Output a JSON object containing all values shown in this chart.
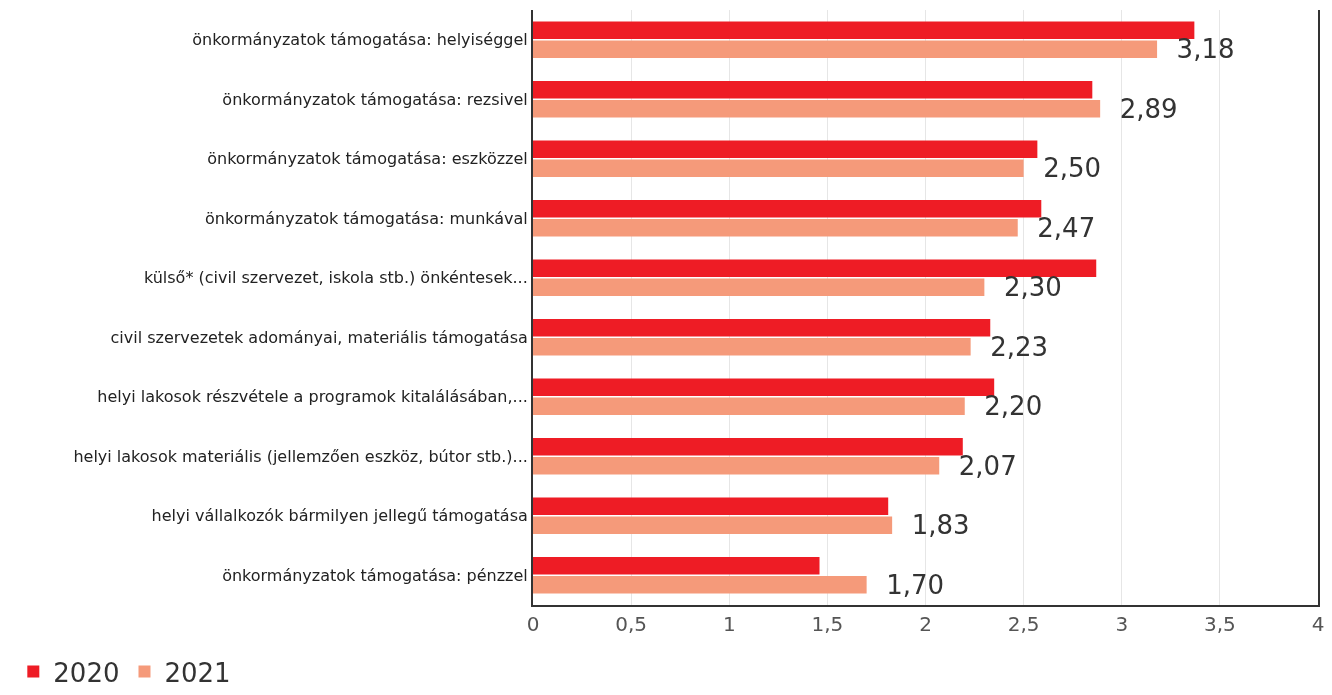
{
  "chart_data": {
    "type": "bar",
    "orientation": "horizontal",
    "categories": [
      "önkormányzatok támogatása: helyiséggel",
      "önkormányzatok támogatása: rezsivel",
      "önkormányzatok támogatása: eszközzel",
      "önkormányzatok támogatása: munkával",
      "külső* (civil szervezet, iskola stb.) önkéntesek...",
      "civil szervezetek adományai, materiális támogatása",
      "helyi lakosok részvétele a programok kitalálásában,...",
      "helyi lakosok materiális (jellemzően eszköz, bútor stb.)...",
      "helyi vállalkozók bármilyen jellegű támogatása",
      "önkormányzatok támogatása: pénzzel"
    ],
    "series": [
      {
        "name": "2020",
        "color": "#ee1c25",
        "values": [
          3.37,
          2.85,
          2.57,
          2.59,
          2.87,
          2.33,
          2.35,
          2.19,
          1.81,
          1.46
        ]
      },
      {
        "name": "2021",
        "color": "#f59a7a",
        "values": [
          3.18,
          2.89,
          2.5,
          2.47,
          2.3,
          2.23,
          2.2,
          2.07,
          1.83,
          1.7
        ],
        "value_labels": [
          "3,18",
          "2,89",
          "2,50",
          "2,47",
          "2,30",
          "2,23",
          "2,20",
          "2,07",
          "1,83",
          "1,70"
        ]
      }
    ],
    "xlim": [
      0,
      4
    ],
    "xticks": [
      0,
      {
        "value": 0.5,
        "label": "0,5"
      },
      1,
      {
        "value": 1.5,
        "label": "1,5"
      },
      2,
      {
        "value": 2.5,
        "label": "2,5"
      },
      3,
      {
        "value": 3.5,
        "label": "3,5"
      },
      4
    ],
    "grid": "x",
    "legend": "bottom left"
  }
}
